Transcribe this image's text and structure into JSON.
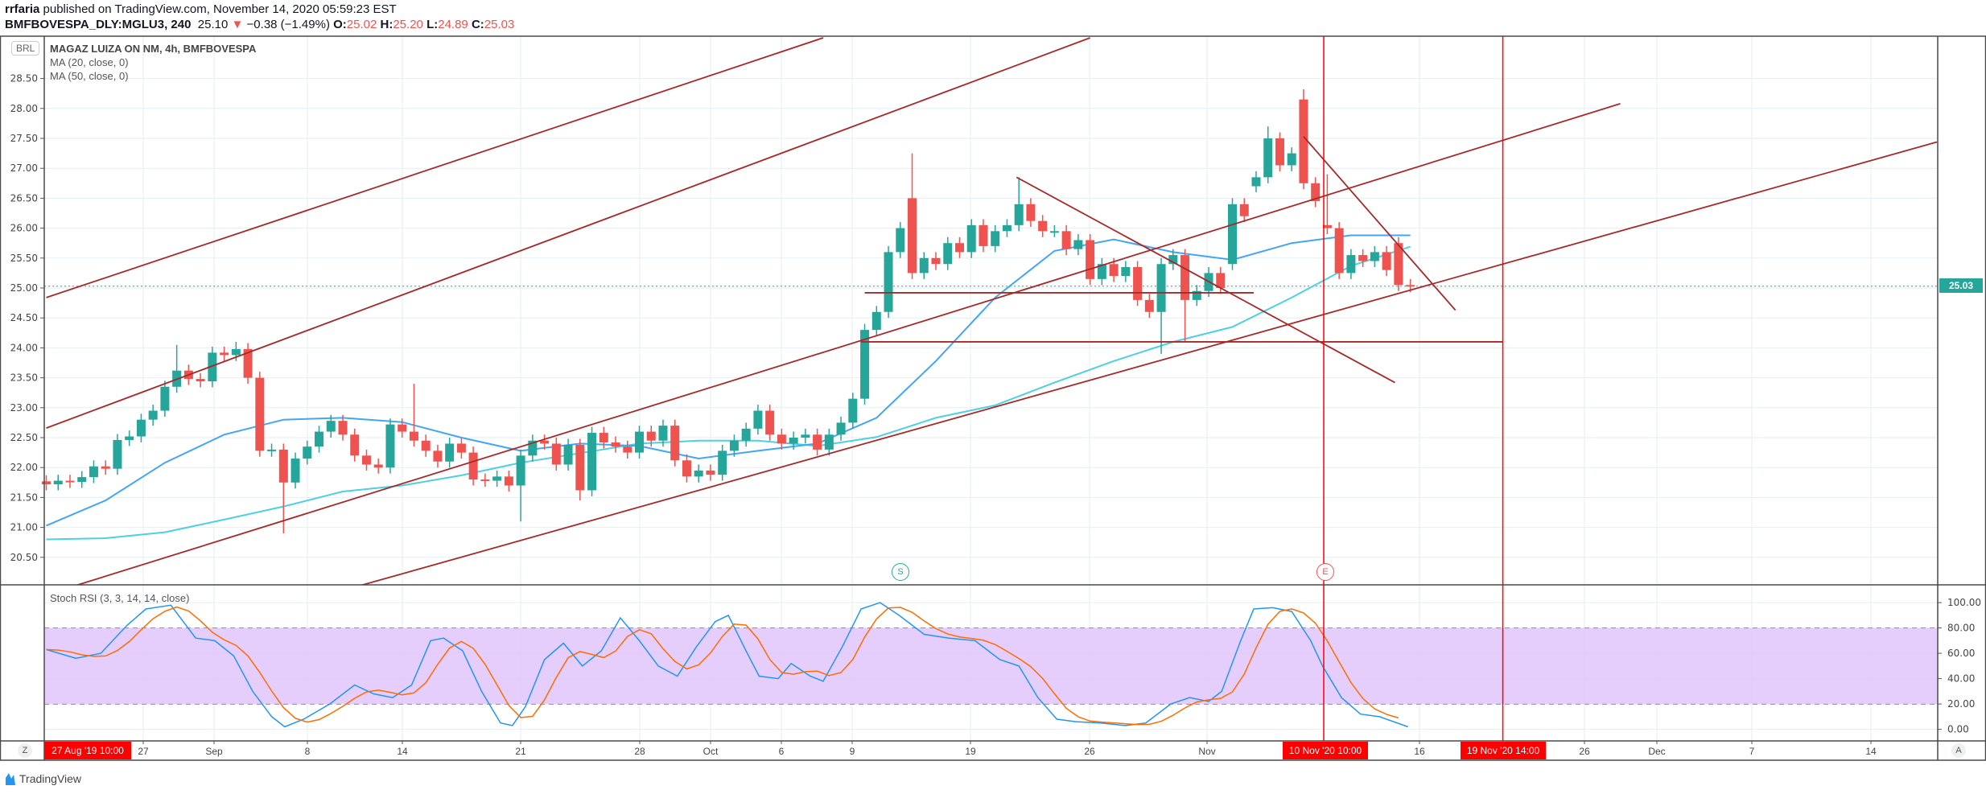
{
  "header": {
    "author": "rrfaria",
    "published": "published on TradingView.com, November 14, 2020 05:59:23 EST",
    "symbol": "BMFBOVESPA_DLY:MGLU3, 240",
    "last": "25.10",
    "change": "−0.38 (−1.49%)",
    "o_label": "O:",
    "o": "25.02",
    "h_label": "H:",
    "h": "25.20",
    "l_label": "L:",
    "l": "24.89",
    "c_label": "C:",
    "c": "25.03"
  },
  "legend": {
    "title": "MAGAZ LUIZA ON NM, 4h, BMFBOVESPA",
    "ma20": "MA (20, close, 0)",
    "ma50": "MA (50, close, 0)",
    "currency": "BRL"
  },
  "current_price": "25.03",
  "price_axis": [
    "28.50",
    "28.00",
    "27.50",
    "27.00",
    "26.50",
    "26.00",
    "25.50",
    "25.00",
    "24.50",
    "24.00",
    "23.50",
    "23.00",
    "22.50",
    "22.00",
    "21.50",
    "21.00",
    "20.50"
  ],
  "stoch": {
    "label": "Stoch RSI (3, 3, 14, 14, close)",
    "axis": [
      "100.00",
      "80.00",
      "60.00",
      "40.00",
      "20.00",
      "0.00"
    ]
  },
  "time_axis": [
    "27",
    "Sep",
    "8",
    "14",
    "21",
    "28",
    "Oct",
    "6",
    "9",
    "19",
    "26",
    "Nov",
    "16",
    "26",
    "Dec",
    "7",
    "14"
  ],
  "time_highlights": [
    "27 Aug '19   10:00",
    "10 Nov '20   10:00",
    "19 Nov '20   14:00"
  ],
  "markers": {
    "start": "S",
    "end": "E"
  },
  "buttons": {
    "z": "Z",
    "a": "A"
  },
  "footer": {
    "brand": "TradingView"
  },
  "colors": {
    "up": "#26a69a",
    "down": "#ef5350",
    "ma20": "#42a5f5",
    "ma50": "#4dd0e1",
    "trend": "#a52a2a",
    "vline": "#ff0000",
    "k": "#2196f3",
    "d": "#ff6d00",
    "band": "#e1c6fb"
  },
  "chart_data": {
    "type": "candlestick",
    "title": "MAGAZ LUIZA ON NM, 4h, BMFBOVESPA",
    "ylim": [
      20.3,
      29.1
    ],
    "closes": [
      21.72,
      21.78,
      21.76,
      21.84,
      22.02,
      21.98,
      22.46,
      22.52,
      22.8,
      22.95,
      23.35,
      23.62,
      23.48,
      23.44,
      23.92,
      23.88,
      23.98,
      23.5,
      22.28,
      22.3,
      21.75,
      22.15,
      22.35,
      22.6,
      22.78,
      22.55,
      22.2,
      22.05,
      22.0,
      22.72,
      22.6,
      22.45,
      22.28,
      22.1,
      22.4,
      22.25,
      21.8,
      21.78,
      21.85,
      21.7,
      22.2,
      22.45,
      22.4,
      22.05,
      22.38,
      21.62,
      22.58,
      22.42,
      22.35,
      22.25,
      22.6,
      22.45,
      22.7,
      22.12,
      21.85,
      21.95,
      21.88,
      22.28,
      22.45,
      22.65,
      22.95,
      22.55,
      22.4,
      22.5,
      22.55,
      22.3,
      22.55,
      22.75,
      23.15,
      24.3,
      24.6,
      25.6,
      26.0,
      25.25,
      25.5,
      25.4,
      25.75,
      25.6,
      26.05,
      25.7,
      25.95,
      26.05,
      26.4,
      26.12,
      25.95,
      25.95,
      25.65,
      25.8,
      25.15,
      25.4,
      25.2,
      25.35,
      24.8,
      24.6,
      25.4,
      25.55,
      24.8,
      24.95,
      25.25,
      25.0,
      26.4,
      26.2,
      26.85,
      27.5,
      27.05,
      27.25,
      26.75,
      26.45,
      26.0,
      25.25,
      25.55,
      25.45,
      25.6,
      25.3,
      25.05,
      25.03
    ],
    "open_overrides": {
      "73": 26.5,
      "100": 25.4,
      "102": 26.7,
      "106": 28.15,
      "108": 26.05,
      "114": 25.75
    },
    "high_overrides": {
      "11": 24.05,
      "16": 24.1,
      "31": 23.4,
      "73": 27.25,
      "82": 26.85,
      "103": 27.7,
      "106": 28.32,
      "108": 26.9
    },
    "low_overrides": {
      "20": 20.9,
      "40": 21.1,
      "45": 21.45,
      "94": 23.9,
      "96": 24.1
    },
    "ma20": [
      [
        0,
        21.03
      ],
      [
        5,
        21.45
      ],
      [
        10,
        22.08
      ],
      [
        15,
        22.55
      ],
      [
        20,
        22.8
      ],
      [
        25,
        22.83
      ],
      [
        30,
        22.76
      ],
      [
        35,
        22.5
      ],
      [
        40,
        22.28
      ],
      [
        45,
        22.4
      ],
      [
        50,
        22.36
      ],
      [
        55,
        22.15
      ],
      [
        60,
        22.28
      ],
      [
        65,
        22.4
      ],
      [
        70,
        22.83
      ],
      [
        75,
        23.78
      ],
      [
        80,
        24.84
      ],
      [
        85,
        25.62
      ],
      [
        90,
        25.81
      ],
      [
        95,
        25.6
      ],
      [
        100,
        25.47
      ],
      [
        105,
        25.75
      ],
      [
        110,
        25.88
      ],
      [
        115,
        25.88
      ]
    ],
    "ma50": [
      [
        0,
        20.8
      ],
      [
        5,
        20.82
      ],
      [
        10,
        20.92
      ],
      [
        15,
        21.13
      ],
      [
        20,
        21.35
      ],
      [
        25,
        21.6
      ],
      [
        30,
        21.7
      ],
      [
        35,
        21.87
      ],
      [
        40,
        22.08
      ],
      [
        45,
        22.24
      ],
      [
        50,
        22.4
      ],
      [
        55,
        22.45
      ],
      [
        60,
        22.45
      ],
      [
        65,
        22.36
      ],
      [
        70,
        22.51
      ],
      [
        75,
        22.83
      ],
      [
        80,
        23.04
      ],
      [
        85,
        23.42
      ],
      [
        90,
        23.78
      ],
      [
        95,
        24.1
      ],
      [
        100,
        24.35
      ],
      [
        105,
        24.84
      ],
      [
        110,
        25.37
      ],
      [
        115,
        25.69
      ]
    ],
    "trendlines": [
      [
        [
          0,
          24.84
        ],
        [
          65.5,
          29.18
        ]
      ],
      [
        [
          0,
          22.66
        ],
        [
          88,
          29.18
        ]
      ],
      [
        [
          2.5,
          20.03
        ],
        [
          132.7,
          28.08
        ]
      ],
      [
        [
          26.5,
          20.03
        ],
        [
          159.4,
          27.44
        ]
      ],
      [
        [
          81.8,
          26.85
        ],
        [
          113.7,
          23.42
        ]
      ],
      [
        [
          106,
          27.53
        ],
        [
          118.8,
          24.63
        ]
      ],
      [
        [
          69,
          24.92
        ],
        [
          101.8,
          24.92
        ]
      ],
      [
        [
          68.7,
          24.1
        ],
        [
          122.8,
          24.1
        ]
      ]
    ],
    "vlines": [
      107.7,
      122.8
    ],
    "stoch_k": [
      [
        0,
        63
      ],
      [
        2.5,
        56
      ],
      [
        4.6,
        60
      ],
      [
        6.8,
        82
      ],
      [
        8.4,
        95
      ],
      [
        10.5,
        98
      ],
      [
        12.6,
        72
      ],
      [
        14.2,
        70
      ],
      [
        15.8,
        58
      ],
      [
        17.4,
        30
      ],
      [
        19,
        10
      ],
      [
        20.1,
        2
      ],
      [
        21.7,
        8
      ],
      [
        23.9,
        20
      ],
      [
        26,
        35
      ],
      [
        27.6,
        28
      ],
      [
        29.2,
        25
      ],
      [
        30.8,
        35
      ],
      [
        32.4,
        70
      ],
      [
        33.5,
        72
      ],
      [
        35.1,
        62
      ],
      [
        36.7,
        30
      ],
      [
        38.3,
        5
      ],
      [
        39.3,
        3
      ],
      [
        40.4,
        18
      ],
      [
        42,
        55
      ],
      [
        43.6,
        68
      ],
      [
        45.2,
        50
      ],
      [
        46.8,
        62
      ],
      [
        48.4,
        88
      ],
      [
        50,
        70
      ],
      [
        51.6,
        50
      ],
      [
        53.2,
        42
      ],
      [
        54.8,
        65
      ],
      [
        56.4,
        85
      ],
      [
        57.5,
        90
      ],
      [
        59.1,
        60
      ],
      [
        60.1,
        42
      ],
      [
        61.7,
        40
      ],
      [
        62.8,
        52
      ],
      [
        64.4,
        42
      ],
      [
        65.5,
        38
      ],
      [
        67.1,
        65
      ],
      [
        68.7,
        95
      ],
      [
        70.3,
        100
      ],
      [
        71.9,
        90
      ],
      [
        74,
        75
      ],
      [
        76.1,
        72
      ],
      [
        78.3,
        70
      ],
      [
        80.4,
        55
      ],
      [
        82,
        50
      ],
      [
        83.6,
        25
      ],
      [
        85.2,
        8
      ],
      [
        86.8,
        6
      ],
      [
        88.9,
        5
      ],
      [
        91,
        3
      ],
      [
        92.7,
        5
      ],
      [
        94.8,
        20
      ],
      [
        96.4,
        25
      ],
      [
        98,
        22
      ],
      [
        99.1,
        30
      ],
      [
        100.7,
        70
      ],
      [
        101.8,
        95
      ],
      [
        103.4,
        96
      ],
      [
        105,
        93
      ],
      [
        106.6,
        70
      ],
      [
        107.6,
        50
      ],
      [
        109.2,
        25
      ],
      [
        110.8,
        12
      ],
      [
        112.4,
        10
      ],
      [
        114.8,
        2
      ]
    ],
    "stoch_bands": [
      20,
      80
    ],
    "stoch_ylim": [
      0,
      100
    ]
  }
}
